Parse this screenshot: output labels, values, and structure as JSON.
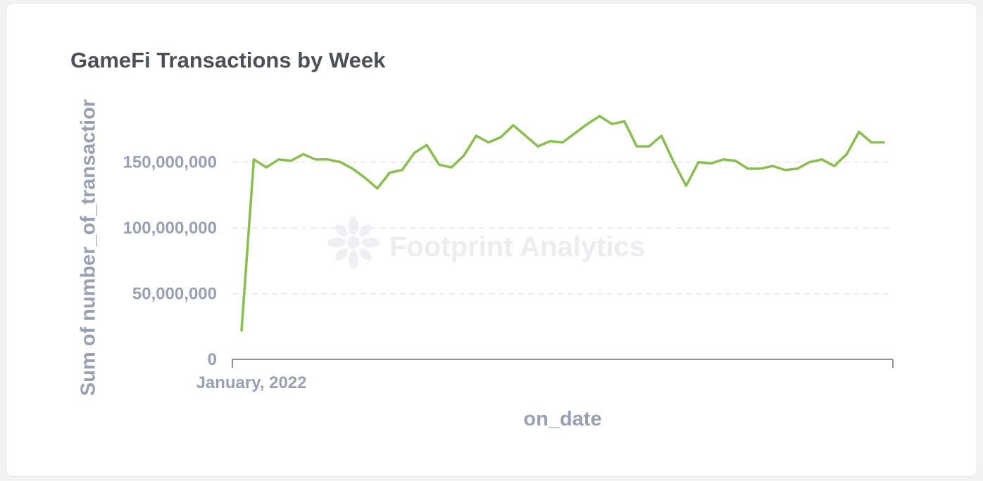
{
  "card": {
    "title": "GameFi Transactions by Week"
  },
  "watermark": {
    "text": "Footprint Analytics"
  },
  "chart_data": {
    "type": "line",
    "title": "GameFi Transactions by Week",
    "xlabel": "on_date",
    "ylabel": "Sum of number_of_transactior",
    "x_tick_labels": [
      "January, 2022"
    ],
    "y_ticks": [
      0,
      50000000,
      100000000,
      150000000
    ],
    "y_tick_labels": [
      "0",
      "50,000,000",
      "100,000,000",
      "150,000,000"
    ],
    "ylim": [
      0,
      200000000
    ],
    "grid": "horizontal dashed",
    "color": "#88bf4d",
    "series": [
      {
        "values": [
          22000000,
          152000000,
          146000000,
          152000000,
          151000000,
          156000000,
          152000000,
          152000000,
          150000000,
          145000000,
          138000000,
          130000000,
          142000000,
          144000000,
          157000000,
          163000000,
          148000000,
          146000000,
          155000000,
          170000000,
          165000000,
          169000000,
          178000000,
          170000000,
          162000000,
          166000000,
          165000000,
          172000000,
          179000000,
          185000000,
          179000000,
          181000000,
          162000000,
          162000000,
          170000000,
          150000000,
          132000000,
          150000000,
          149000000,
          152000000,
          151000000,
          145000000,
          145000000,
          147000000,
          144000000,
          145000000,
          150000000,
          152000000,
          147000000,
          156000000,
          173000000,
          165000000,
          165000000
        ]
      }
    ]
  }
}
